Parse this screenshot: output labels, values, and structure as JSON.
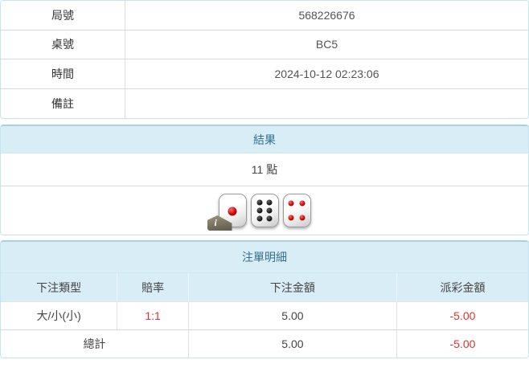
{
  "info_table": {
    "rows": [
      {
        "label": "局號",
        "value": "568226676"
      },
      {
        "label": "桌號",
        "value": "BC5"
      },
      {
        "label": "時間",
        "value": "2024-10-12 02:23:06"
      },
      {
        "label": "備註",
        "value": ""
      }
    ]
  },
  "result_panel": {
    "header": "結果",
    "points": "11 點",
    "dice_values": [
      1,
      6,
      4
    ],
    "info_badge_glyph": "i"
  },
  "bet_panel": {
    "header": "注單明細",
    "columns": [
      "下注類型",
      "賠率",
      "下注金額",
      "派彩金額"
    ],
    "rows": [
      {
        "type": "大/小(小)",
        "odds": "1:1",
        "bet_amount": "5.00",
        "payout": "-5.00"
      }
    ],
    "total": {
      "label": "總計",
      "bet_amount": "5.00",
      "payout": "-5.00"
    }
  },
  "colors": {
    "panel_border": "#c3e4f0",
    "header_bg": "#d9edf7",
    "header_text": "#31708f",
    "negative_red": "#e03131",
    "die_red_pip": "#c40000",
    "die_black_pip": "#101010"
  }
}
